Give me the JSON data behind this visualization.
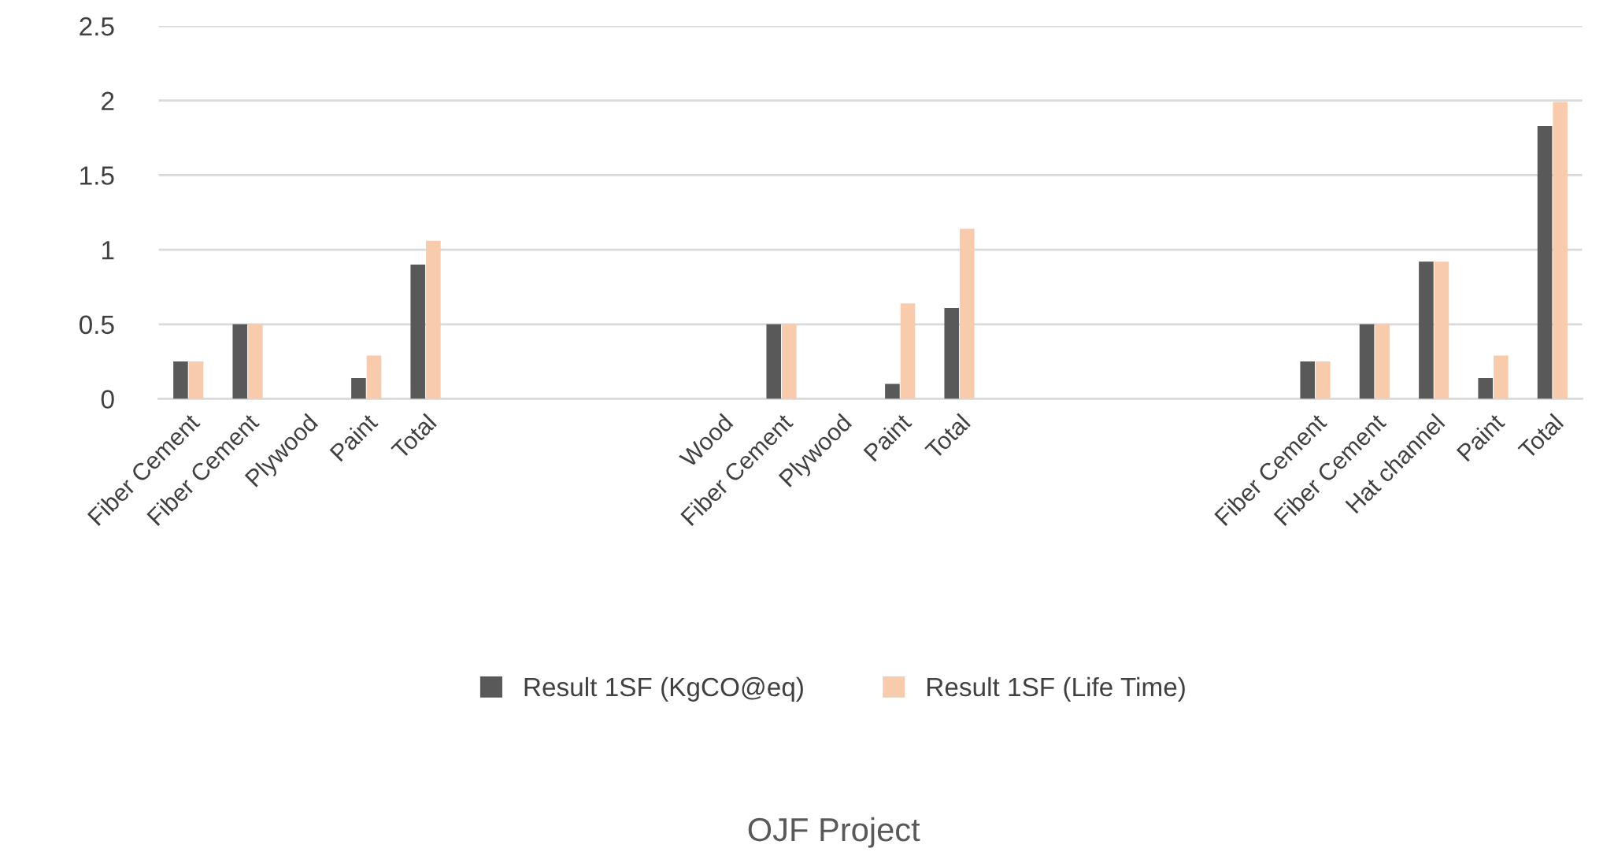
{
  "chart_data": {
    "type": "bar",
    "title": "OJF Project",
    "categories": [
      "Fiber Cement",
      "Fiber Cement",
      "Plywood",
      "Paint",
      "Total",
      null,
      null,
      null,
      null,
      "Wood",
      "Fiber Cement",
      "Plywood",
      "Paint",
      "Total",
      null,
      null,
      null,
      null,
      null,
      "Fiber Cement",
      "Fiber Cement",
      "Hat channel",
      "Paint",
      "Total"
    ],
    "series": [
      {
        "name": "Result 1SF (KgCO@eq)",
        "color": "#595959",
        "values": [
          0.25,
          0.5,
          0,
          0.14,
          0.9,
          null,
          null,
          null,
          null,
          0,
          0.5,
          0,
          0.1,
          0.61,
          null,
          null,
          null,
          null,
          null,
          0.25,
          0.5,
          0.92,
          0.14,
          1.83
        ]
      },
      {
        "name": "Result 1SF (Life Time)",
        "color": "#f8cbad",
        "values": [
          0.25,
          0.5,
          0,
          0.29,
          1.06,
          null,
          null,
          null,
          null,
          0,
          0.5,
          0,
          0.64,
          1.14,
          null,
          null,
          null,
          null,
          null,
          0.25,
          0.5,
          0.92,
          0.29,
          1.99
        ]
      }
    ],
    "ylim": [
      0,
      2.5
    ],
    "yticks": [
      0,
      0.5,
      1,
      1.5,
      2,
      2.5
    ],
    "grid": "y",
    "legend": "bottom"
  }
}
